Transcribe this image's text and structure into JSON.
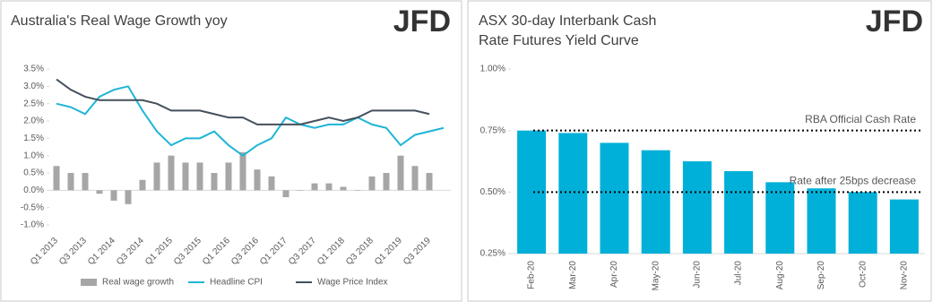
{
  "chart_data": [
    {
      "type": "combo",
      "title": "Australia's Real Wage Growth yoy",
      "watermark": "JFD",
      "categories": [
        "Q1 2013",
        null,
        "Q3 2013",
        null,
        "Q1 2014",
        null,
        "Q3 2014",
        null,
        "Q1 2015",
        null,
        "Q3 2015",
        null,
        "Q1 2016",
        null,
        "Q3 2016",
        null,
        "Q1 2017",
        null,
        "Q3 2017",
        null,
        "Q1 2018",
        null,
        "Q3 2018",
        null,
        "Q1 2019",
        null,
        "Q3 2019",
        null
      ],
      "series": [
        {
          "name": "Real wage growth",
          "kind": "bar",
          "color": "#a6a6a6",
          "values": [
            0.7,
            0.5,
            0.5,
            -0.1,
            -0.3,
            -0.4,
            0.3,
            0.8,
            1.0,
            0.8,
            0.8,
            0.5,
            0.8,
            1.1,
            0.6,
            0.4,
            -0.2,
            0.0,
            0.2,
            0.2,
            0.1,
            0.0,
            0.4,
            0.5,
            1.0,
            0.7,
            0.5,
            null
          ]
        },
        {
          "name": "Headline CPI",
          "kind": "line",
          "color": "#1fb5d6",
          "values": [
            2.5,
            2.4,
            2.2,
            2.7,
            2.9,
            3.0,
            2.3,
            1.7,
            1.3,
            1.5,
            1.5,
            1.7,
            1.3,
            1.0,
            1.3,
            1.5,
            2.1,
            1.9,
            1.8,
            1.9,
            1.9,
            2.1,
            1.9,
            1.8,
            1.3,
            1.6,
            1.7,
            1.8
          ]
        },
        {
          "name": "Wage Price Index",
          "kind": "line",
          "color": "#44505c",
          "values": [
            3.2,
            2.9,
            2.7,
            2.6,
            2.6,
            2.6,
            2.6,
            2.5,
            2.3,
            2.3,
            2.3,
            2.2,
            2.1,
            2.1,
            1.9,
            1.9,
            1.9,
            1.9,
            2.0,
            2.1,
            2.0,
            2.1,
            2.3,
            2.3,
            2.3,
            2.3,
            2.2,
            null
          ]
        }
      ],
      "ylim": [
        -1.0,
        3.5
      ],
      "yticks": [
        {
          "value": 3.5,
          "label": "3.5%"
        },
        {
          "value": 3.0,
          "label": "3.0%"
        },
        {
          "value": 2.5,
          "label": "2.5%"
        },
        {
          "value": 2.0,
          "label": "2.0%"
        },
        {
          "value": 1.5,
          "label": "1.5%"
        },
        {
          "value": 1.0,
          "label": "1.0%"
        },
        {
          "value": 0.5,
          "label": "0.5%"
        },
        {
          "value": 0,
          "label": "0.0%"
        },
        {
          "value": -0.5,
          "label": "-0.5%"
        },
        {
          "value": -1.0,
          "label": "-1.0%"
        }
      ],
      "legend": "bottom"
    },
    {
      "type": "bar",
      "title": "ASX 30-day Interbank Cash Rate Futures Yield Curve",
      "watermark": "JFD",
      "categories": [
        "Feb-20",
        "Mar-20",
        "Apr-20",
        "May-20",
        "Jun-20",
        "Jul-20",
        "Aug-20",
        "Sep-20",
        "Oct-20",
        "Nov-20"
      ],
      "values": [
        0.75,
        0.74,
        0.7,
        0.67,
        0.625,
        0.585,
        0.54,
        0.515,
        0.5,
        0.47
      ],
      "color": "#00b0d8",
      "ylim": [
        0.25,
        1.0
      ],
      "yticks": [
        {
          "value": 1.0,
          "label": "1.00%"
        },
        {
          "value": 0.75,
          "label": "0.75%"
        },
        {
          "value": 0.5,
          "label": "0.50%"
        },
        {
          "value": 0.25,
          "label": "0.25%"
        }
      ],
      "reference_lines": [
        {
          "label": "RBA Official Cash Rate",
          "value": 0.75
        },
        {
          "label": "Rate after 25bps decrease",
          "value": 0.5
        }
      ]
    }
  ]
}
